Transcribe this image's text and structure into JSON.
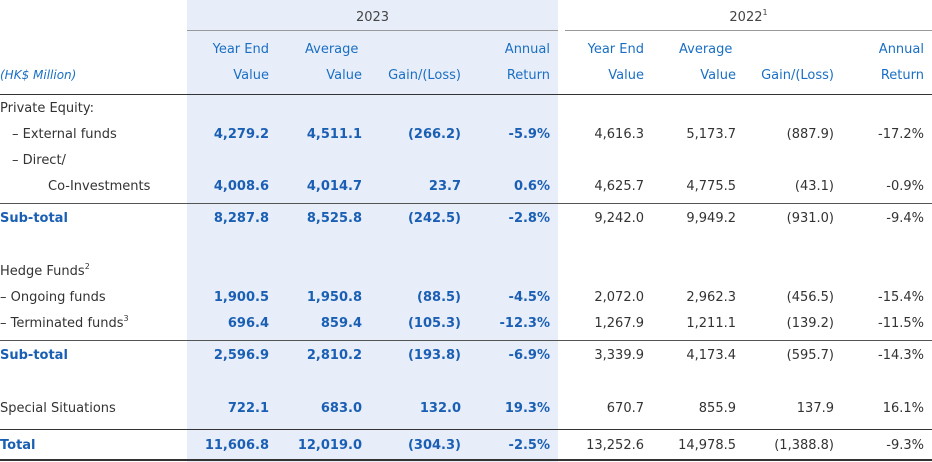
{
  "header": {
    "year_2023": "2023",
    "year_2022": "2022",
    "year_2022_note": "1",
    "unit_label": "(HK$ Million)",
    "col_2023": {
      "year_end_1": "Year End",
      "year_end_2": "Value",
      "average_1": "Average",
      "average_2": "Value",
      "gain_1": "",
      "gain_2": "Gain/(Loss)",
      "annual_1": "Annual",
      "annual_2": "Return"
    },
    "col_2022": {
      "year_end_1": "Year End",
      "year_end_2": "Value",
      "average_1": "Average",
      "average_2": "Value",
      "gain_1": "",
      "gain_2": "Gain/(Loss)",
      "annual_1": "Annual",
      "annual_2": "Return"
    }
  },
  "rows": {
    "private_equity": {
      "label": "Private Equity:"
    },
    "external_funds": {
      "label": "– External funds",
      "v": [
        "4,279.2",
        "4,511.1",
        "(266.2)",
        "-5.9%",
        "4,616.3",
        "5,173.7",
        "(887.9)",
        "-17.2%"
      ]
    },
    "direct": {
      "label": "– Direct/"
    },
    "co_investments": {
      "label": "Co-Investments",
      "v": [
        "4,008.6",
        "4,014.7",
        "23.7",
        "0.6%",
        "4,625.7",
        "4,775.5",
        "(43.1)",
        "-0.9%"
      ]
    },
    "subtotal_pe": {
      "label": "Sub-total",
      "v": [
        "8,287.8",
        "8,525.8",
        "(242.5)",
        "-2.8%",
        "9,242.0",
        "9,949.2",
        "(931.0)",
        "-9.4%"
      ]
    },
    "hedge_funds": {
      "label": "Hedge Funds",
      "note": "2"
    },
    "ongoing_funds": {
      "label": "– Ongoing funds",
      "v": [
        "1,900.5",
        "1,950.8",
        "(88.5)",
        "-4.5%",
        "2,072.0",
        "2,962.3",
        "(456.5)",
        "-15.4%"
      ]
    },
    "terminated_funds": {
      "label": "– Terminated funds",
      "note": "3",
      "v": [
        "696.4",
        "859.4",
        "(105.3)",
        "-12.3%",
        "1,267.9",
        "1,211.1",
        "(139.2)",
        "-11.5%"
      ]
    },
    "subtotal_hf": {
      "label": "Sub-total",
      "v": [
        "2,596.9",
        "2,810.2",
        "(193.8)",
        "-6.9%",
        "3,339.9",
        "4,173.4",
        "(595.7)",
        "-14.3%"
      ]
    },
    "special_situations": {
      "label": "Special Situations",
      "v": [
        "722.1",
        "683.0",
        "132.0",
        "19.3%",
        "670.7",
        "855.9",
        "137.9",
        "16.1%"
      ]
    },
    "total": {
      "label": "Total",
      "v": [
        "11,606.8",
        "12,019.0",
        "(304.3)",
        "-2.5%",
        "13,252.6",
        "14,978.5",
        "(1,388.8)",
        "-9.3%"
      ]
    }
  },
  "colors": {
    "accent": "#1a5fb4",
    "header_blue": "#1a6fc4",
    "band": "#e8eef9"
  }
}
